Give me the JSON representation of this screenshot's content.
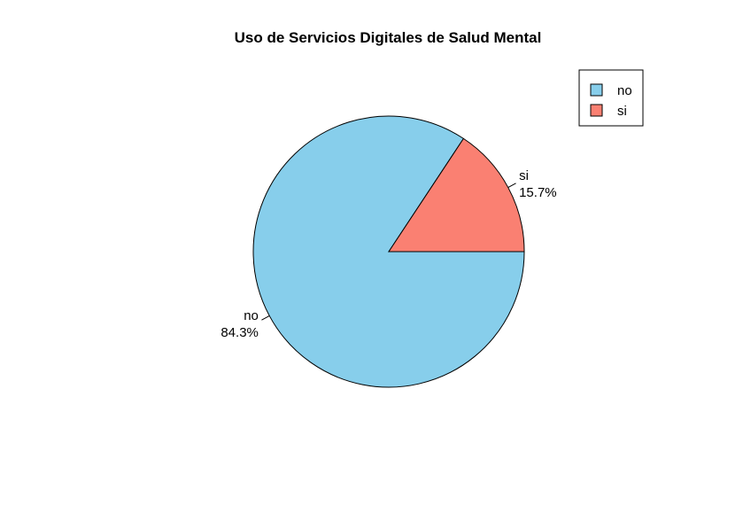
{
  "chart_data": {
    "type": "pie",
    "title": "Uso de Servicios Digitales de Salud Mental",
    "slices": [
      {
        "name": "no",
        "value": 84.3,
        "label": "84.3%",
        "color": "#87CEEB"
      },
      {
        "name": "si",
        "value": 15.7,
        "label": "15.7%",
        "color": "#FA8072"
      }
    ],
    "legend": {
      "placement": "top-right",
      "entries": [
        "no",
        "si"
      ]
    },
    "start_angle": "3 o'clock",
    "direction": "clockwise",
    "border_color": "#000000"
  }
}
